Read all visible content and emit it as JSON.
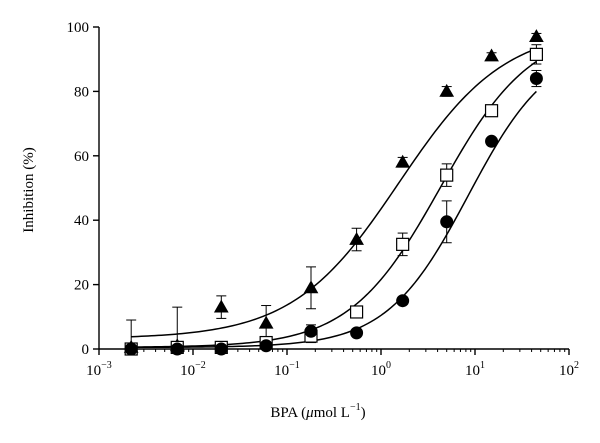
{
  "chart_data": {
    "type": "scatter",
    "title": "",
    "xlabel": {
      "prefix": "BPA (",
      "mu": "μ",
      "unit": "mol L",
      "sup": "−1",
      "suffix": ")"
    },
    "ylabel": "Inhibition (%)",
    "x_scale": "log",
    "xlim": [
      0.001,
      100
    ],
    "ylim": [
      0,
      100
    ],
    "x_ticks": [
      {
        "value": 0.001,
        "base": "10",
        "exp": "−3"
      },
      {
        "value": 0.01,
        "base": "10",
        "exp": "−2"
      },
      {
        "value": 0.1,
        "base": "10",
        "exp": "−1"
      },
      {
        "value": 1,
        "base": "10",
        "exp": "0"
      },
      {
        "value": 10,
        "base": "10",
        "exp": "1"
      },
      {
        "value": 100,
        "base": "10",
        "exp": "2"
      }
    ],
    "y_ticks": [
      {
        "value": 0,
        "label": "0"
      },
      {
        "value": 20,
        "label": "20"
      },
      {
        "value": 40,
        "label": "40"
      },
      {
        "value": 60,
        "label": "60"
      },
      {
        "value": 80,
        "label": "80"
      },
      {
        "value": 100,
        "label": "100"
      }
    ],
    "grid": false,
    "legend": "none",
    "series": [
      {
        "marker": "triangle",
        "filled": true,
        "x": [
          0.0022,
          0.0068,
          0.02,
          0.06,
          0.18,
          0.55,
          1.7,
          5,
          15,
          45
        ],
        "y": [
          0.5,
          1,
          13,
          8,
          19,
          34,
          58,
          80,
          91,
          97
        ],
        "err": [
          8.5,
          12,
          3.5,
          5.5,
          6.5,
          3.5,
          1.5,
          1.5,
          1,
          1
        ],
        "fit": {
          "bottom": 3.2,
          "top": 100,
          "ec50": 1.55,
          "hill": 0.77
        }
      },
      {
        "marker": "square",
        "filled": false,
        "x": [
          0.0022,
          0.0068,
          0.02,
          0.06,
          0.18,
          0.55,
          1.7,
          5,
          15,
          45
        ],
        "y": [
          0,
          0.5,
          0.5,
          2,
          4,
          11.5,
          32.5,
          54,
          74,
          91.5
        ],
        "err": [
          0,
          0,
          0,
          0.8,
          2,
          1.5,
          3.5,
          3.5,
          1.2,
          3
        ],
        "fit": {
          "bottom": 0.5,
          "top": 100,
          "ec50": 4.3,
          "hill": 0.9
        }
      },
      {
        "marker": "circle",
        "filled": true,
        "x": [
          0.0022,
          0.0068,
          0.02,
          0.06,
          0.18,
          0.55,
          1.7,
          5,
          15,
          45
        ],
        "y": [
          0,
          0,
          0,
          1,
          5.5,
          5,
          15,
          39.5,
          64.5,
          84
        ],
        "err": [
          0,
          0,
          0,
          0.5,
          2,
          1,
          1,
          6.5,
          1,
          2.5
        ],
        "fit": {
          "bottom": 0.5,
          "top": 95,
          "ec50": 8.5,
          "hill": 1.0
        }
      }
    ]
  }
}
